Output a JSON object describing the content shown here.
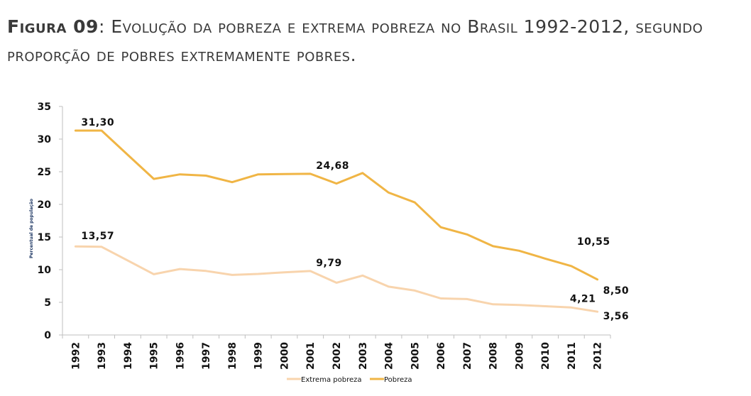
{
  "title": {
    "prefix": "Figura 09",
    "text": ": Evolução da pobreza e extrema pobreza no Brasil 1992-2012, segundo proporção de pobres extremamente pobres."
  },
  "chart_data": {
    "type": "line",
    "ylabel": "Percentual de população",
    "ylim": [
      0,
      35
    ],
    "yticks": [
      0,
      5,
      10,
      15,
      20,
      25,
      30,
      35
    ],
    "grid": false,
    "legend_position": "bottom",
    "categories": [
      "1992",
      "1993",
      "1994",
      "1995",
      "1996",
      "1997",
      "1998",
      "1999",
      "2000",
      "2001",
      "2002",
      "2003",
      "2004",
      "2005",
      "2006",
      "2007",
      "2008",
      "2009",
      "2010",
      "2011",
      "2012"
    ],
    "series": [
      {
        "name": "Extrema pobreza",
        "color": "#f8d4ad",
        "values": [
          13.57,
          13.5,
          11.4,
          9.3,
          10.1,
          9.8,
          9.2,
          9.35,
          9.6,
          9.79,
          8.0,
          9.1,
          7.4,
          6.8,
          5.6,
          5.5,
          4.7,
          4.6,
          4.4,
          4.21,
          3.56
        ]
      },
      {
        "name": "Pobreza",
        "color": "#f0b545",
        "values": [
          31.3,
          31.3,
          27.6,
          23.9,
          24.6,
          24.4,
          23.4,
          24.6,
          24.65,
          24.68,
          23.2,
          24.8,
          21.8,
          20.3,
          16.5,
          15.4,
          13.6,
          12.9,
          11.7,
          10.55,
          8.5
        ]
      }
    ],
    "data_labels": [
      {
        "text": "31,30",
        "series": 1,
        "index": 0
      },
      {
        "text": "24,68",
        "series": 1,
        "index": 9
      },
      {
        "text": "10,55",
        "series": 1,
        "index": 19
      },
      {
        "text": "8,50",
        "series": 1,
        "index": 20
      },
      {
        "text": "13,57",
        "series": 0,
        "index": 0
      },
      {
        "text": "9,79",
        "series": 0,
        "index": 9
      },
      {
        "text": "4,21",
        "series": 0,
        "index": 19
      },
      {
        "text": "3,56",
        "series": 0,
        "index": 20
      }
    ]
  }
}
